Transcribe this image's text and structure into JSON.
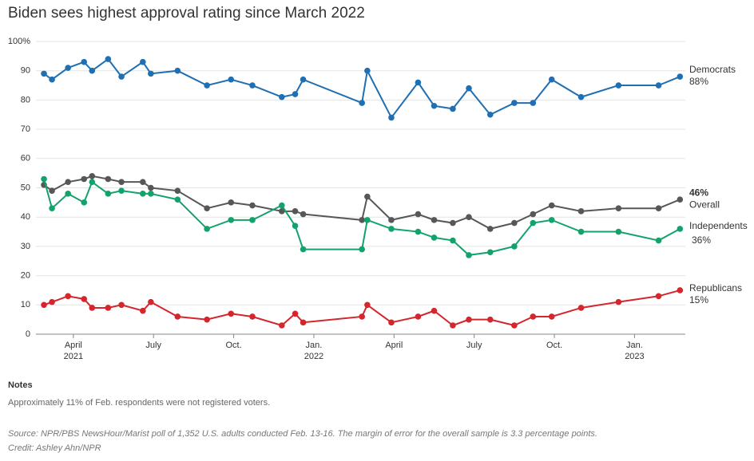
{
  "chart_data": {
    "type": "line",
    "title": "Biden sees highest approval rating since March 2022",
    "x": [
      1.9,
      2.2,
      2.8,
      3.4,
      3.7,
      4.3,
      4.8,
      5.6,
      5.9,
      6.9,
      8.0,
      8.9,
      9.7,
      10.8,
      11.3,
      11.6,
      13.8,
      14.0,
      14.9,
      15.9,
      16.5,
      17.2,
      17.8,
      18.6,
      19.5,
      20.2,
      20.9,
      22.0,
      23.4,
      24.9,
      25.7
    ],
    "xlim": [
      1.6,
      25.9
    ],
    "xticks": [
      {
        "value": 3,
        "label": "April"
      },
      {
        "value": 6,
        "label": "July"
      },
      {
        "value": 9,
        "label": "Oct."
      },
      {
        "value": 12,
        "label": "Jan."
      },
      {
        "value": 15,
        "label": "April"
      },
      {
        "value": 18,
        "label": "July"
      },
      {
        "value": 21,
        "label": "Oct."
      },
      {
        "value": 24,
        "label": "Jan."
      }
    ],
    "x_year_labels": [
      {
        "value": 3,
        "label": "2021"
      },
      {
        "value": 12,
        "label": "2022"
      },
      {
        "value": 24,
        "label": "2023"
      }
    ],
    "ylim": [
      0,
      100
    ],
    "yticks": [
      0,
      10,
      20,
      30,
      40,
      50,
      60,
      70,
      80,
      90,
      {
        "value": 100,
        "label": "100%"
      }
    ],
    "grid": true,
    "series": [
      {
        "name": "Democrats",
        "color": "#1f6fb2",
        "values": [
          89,
          87,
          91,
          93,
          90,
          94,
          88,
          93,
          89,
          90,
          85,
          87,
          85,
          81,
          82,
          87,
          79,
          90,
          74,
          86,
          78,
          77,
          84,
          75,
          79,
          79,
          87,
          81,
          85,
          85,
          88
        ],
        "value_labels": [
          null,
          null,
          null,
          null,
          null,
          null,
          null,
          null,
          null,
          null,
          null,
          null,
          null,
          null,
          null,
          null,
          null,
          null,
          null,
          null,
          null,
          null,
          null,
          null,
          null,
          null,
          null,
          null,
          null,
          null,
          "88%"
        ]
      },
      {
        "name": "Overall",
        "color": "#575757",
        "values": [
          51,
          49,
          52,
          53,
          54,
          53,
          52,
          52,
          50,
          49,
          43,
          45,
          44,
          42,
          42,
          41,
          39,
          47,
          39,
          41,
          39,
          38,
          40,
          36,
          38,
          41,
          44,
          42,
          43,
          43,
          46
        ],
        "value_labels": [
          null,
          null,
          null,
          null,
          null,
          null,
          null,
          null,
          null,
          null,
          null,
          null,
          null,
          null,
          null,
          null,
          null,
          null,
          null,
          null,
          null,
          null,
          null,
          null,
          null,
          null,
          null,
          null,
          null,
          null,
          "46%"
        ]
      },
      {
        "name": "Independents",
        "color": "#12a36d",
        "values": [
          53,
          43,
          48,
          45,
          52,
          48,
          49,
          48,
          48,
          46,
          36,
          39,
          39,
          44,
          37,
          29,
          29,
          39,
          36,
          35,
          33,
          32,
          27,
          28,
          30,
          38,
          39,
          35,
          35,
          32,
          36
        ],
        "value_labels": [
          null,
          null,
          null,
          null,
          null,
          null,
          null,
          null,
          null,
          null,
          null,
          null,
          null,
          null,
          null,
          null,
          null,
          null,
          null,
          null,
          null,
          null,
          null,
          null,
          null,
          null,
          null,
          null,
          null,
          null,
          "36%"
        ]
      },
      {
        "name": "Republicans",
        "color": "#d4262c",
        "values": [
          10,
          11,
          13,
          12,
          9,
          9,
          10,
          8,
          11,
          6,
          5,
          7,
          6,
          3,
          7,
          4,
          6,
          10,
          4,
          6,
          8,
          3,
          5,
          5,
          3,
          6,
          6,
          9,
          11,
          13,
          15
        ],
        "value_labels": [
          null,
          null,
          null,
          null,
          null,
          null,
          null,
          null,
          null,
          null,
          null,
          null,
          null,
          null,
          null,
          null,
          null,
          null,
          null,
          null,
          null,
          null,
          null,
          null,
          null,
          null,
          null,
          null,
          null,
          null,
          "15%"
        ]
      }
    ]
  },
  "notes": {
    "heading": "Notes",
    "text": "Approximately 11% of Feb. respondents were not registered voters.",
    "source": "Source: NPR/PBS NewsHour/Marist poll of 1,352 U.S. adults conducted Feb. 13-16. The margin of error for the overall sample is 3.3 percentage points.",
    "credit": "Credit: Ashley Ahn/NPR"
  }
}
